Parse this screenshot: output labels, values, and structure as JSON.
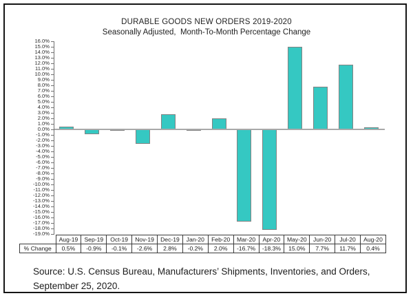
{
  "title": "DURABLE GOODS NEW ORDERS 2019-2020",
  "subtitle": "Seasonally Adjusted,  Month-To-Month Percentage Change",
  "source": {
    "line1": "Source: U.S. Census Bureau, Manufacturers’ Shipments, Inventories, and Orders,",
    "line2": "September 25, 2020."
  },
  "table": {
    "row_label": "% Change",
    "months": [
      "Aug-19",
      "Sep-19",
      "Oct-19",
      "Nov-19",
      "Dec-19",
      "Jan-20",
      "Feb-20",
      "Mar-20",
      "Apr-20",
      "May-20",
      "Jun-20",
      "Jul-20",
      "Aug-20"
    ],
    "values_display": [
      "0.5%",
      "-0.9%",
      "-0.1%",
      "-2.6%",
      "2.8%",
      "-0.2%",
      "2.0%",
      "-16.7%",
      "-18.3%",
      "15.0%",
      "7.7%",
      "11.7%",
      "0.4%"
    ]
  },
  "chart_data": {
    "type": "bar",
    "title": "DURABLE GOODS NEW ORDERS 2019-2020",
    "subtitle": "Seasonally Adjusted,  Month-To-Month Percentage Change",
    "categories": [
      "Aug-19",
      "Sep-19",
      "Oct-19",
      "Nov-19",
      "Dec-19",
      "Jan-20",
      "Feb-20",
      "Mar-20",
      "Apr-20",
      "May-20",
      "Jun-20",
      "Jul-20",
      "Aug-20"
    ],
    "values": [
      0.5,
      -0.9,
      -0.1,
      -2.6,
      2.8,
      -0.2,
      2.0,
      -16.7,
      -18.3,
      15.0,
      7.7,
      11.7,
      0.4
    ],
    "xlabel": "",
    "ylabel": "",
    "ylim": [
      -19,
      16
    ],
    "ytick_step": 1.0,
    "yticks": [
      "16.0%",
      "15.0%",
      "14.0%",
      "13.0%",
      "12.0%",
      "11.0%",
      "10.0%",
      "9.0%",
      "8.0%",
      "7.0%",
      "6.0%",
      "5.0%",
      "4.0%",
      "3.0%",
      "2.0%",
      "1.0%",
      "0.0%",
      "-1.0%",
      "-2.0%",
      "-3.0%",
      "-4.0%",
      "-5.0%",
      "-6.0%",
      "-7.0%",
      "-8.0%",
      "-9.0%",
      "-10.0%",
      "-11.0%",
      "-12.0%",
      "-13.0%",
      "-14.0%",
      "-15.0%",
      "-16.0%",
      "-17.0%",
      "-18.0%",
      "-19.0%"
    ],
    "grid": false,
    "legend": false,
    "bar_color": "#35c8c2",
    "bar_border_color": "#828282",
    "zero_line_color": "#a8a8a8",
    "axis_color": "#707070"
  }
}
